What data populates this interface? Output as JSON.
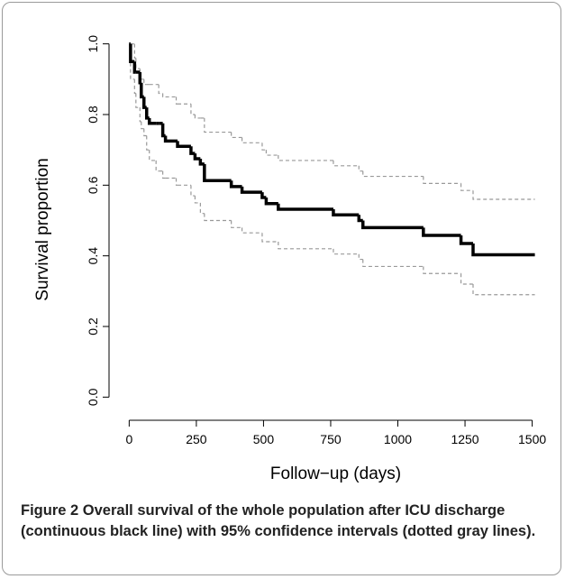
{
  "chart_data": {
    "type": "line",
    "step": "post",
    "xlabel": "Follow−up (days)",
    "ylabel": "Survival proportion",
    "x": [
      0,
      5,
      20,
      25,
      40,
      45,
      55,
      65,
      75,
      100,
      110,
      125,
      135,
      175,
      180,
      230,
      245,
      265,
      280,
      380,
      420,
      495,
      510,
      555,
      760,
      855,
      870,
      1095,
      1235,
      1280,
      1510
    ],
    "series": [
      {
        "color": "#000000",
        "line_style": "solid",
        "line_width": 3.5,
        "values": [
          1.0,
          0.95,
          0.92,
          0.92,
          0.89,
          0.85,
          0.82,
          0.79,
          0.775,
          0.775,
          0.775,
          0.74,
          0.725,
          0.725,
          0.71,
          0.69,
          0.675,
          0.66,
          0.613,
          0.596,
          0.58,
          0.565,
          0.548,
          0.532,
          0.516,
          0.5,
          0.48,
          0.458,
          0.435,
          0.403,
          0.403
        ]
      },
      {
        "color": "#999999",
        "line_style": "dashed",
        "line_width": 1.2,
        "values": [
          1.0,
          1.0,
          0.96,
          0.93,
          0.9,
          0.9,
          0.885,
          0.885,
          0.885,
          0.885,
          0.86,
          0.85,
          0.85,
          0.83,
          0.83,
          0.8,
          0.79,
          0.79,
          0.75,
          0.735,
          0.72,
          0.7,
          0.685,
          0.67,
          0.655,
          0.64,
          0.625,
          0.605,
          0.585,
          0.56,
          0.56
        ]
      },
      {
        "color": "#999999",
        "line_style": "dashed",
        "line_width": 1.2,
        "values": [
          1.0,
          0.9,
          0.86,
          0.82,
          0.78,
          0.76,
          0.74,
          0.7,
          0.67,
          0.64,
          0.64,
          0.62,
          0.62,
          0.6,
          0.6,
          0.57,
          0.55,
          0.52,
          0.5,
          0.48,
          0.465,
          0.44,
          0.44,
          0.42,
          0.405,
          0.39,
          0.37,
          0.35,
          0.32,
          0.29,
          0.29
        ]
      }
    ],
    "xlim": [
      -75,
      1545
    ],
    "ylim": [
      -0.04,
      1.04
    ],
    "xticks": [
      0,
      250,
      500,
      750,
      1000,
      1250,
      1500
    ],
    "yticks": [
      {
        "value": 0,
        "label": "0.0"
      },
      0.2,
      0.4,
      0.6,
      0.8,
      {
        "value": 1,
        "label": "1.0"
      }
    ],
    "grid": false
  },
  "figure": {
    "label": "Figure 2",
    "caption": "Overall survival of the whole population after ICU discharge (continuous black line) with 95% confidence intervals (dotted gray lines)."
  }
}
